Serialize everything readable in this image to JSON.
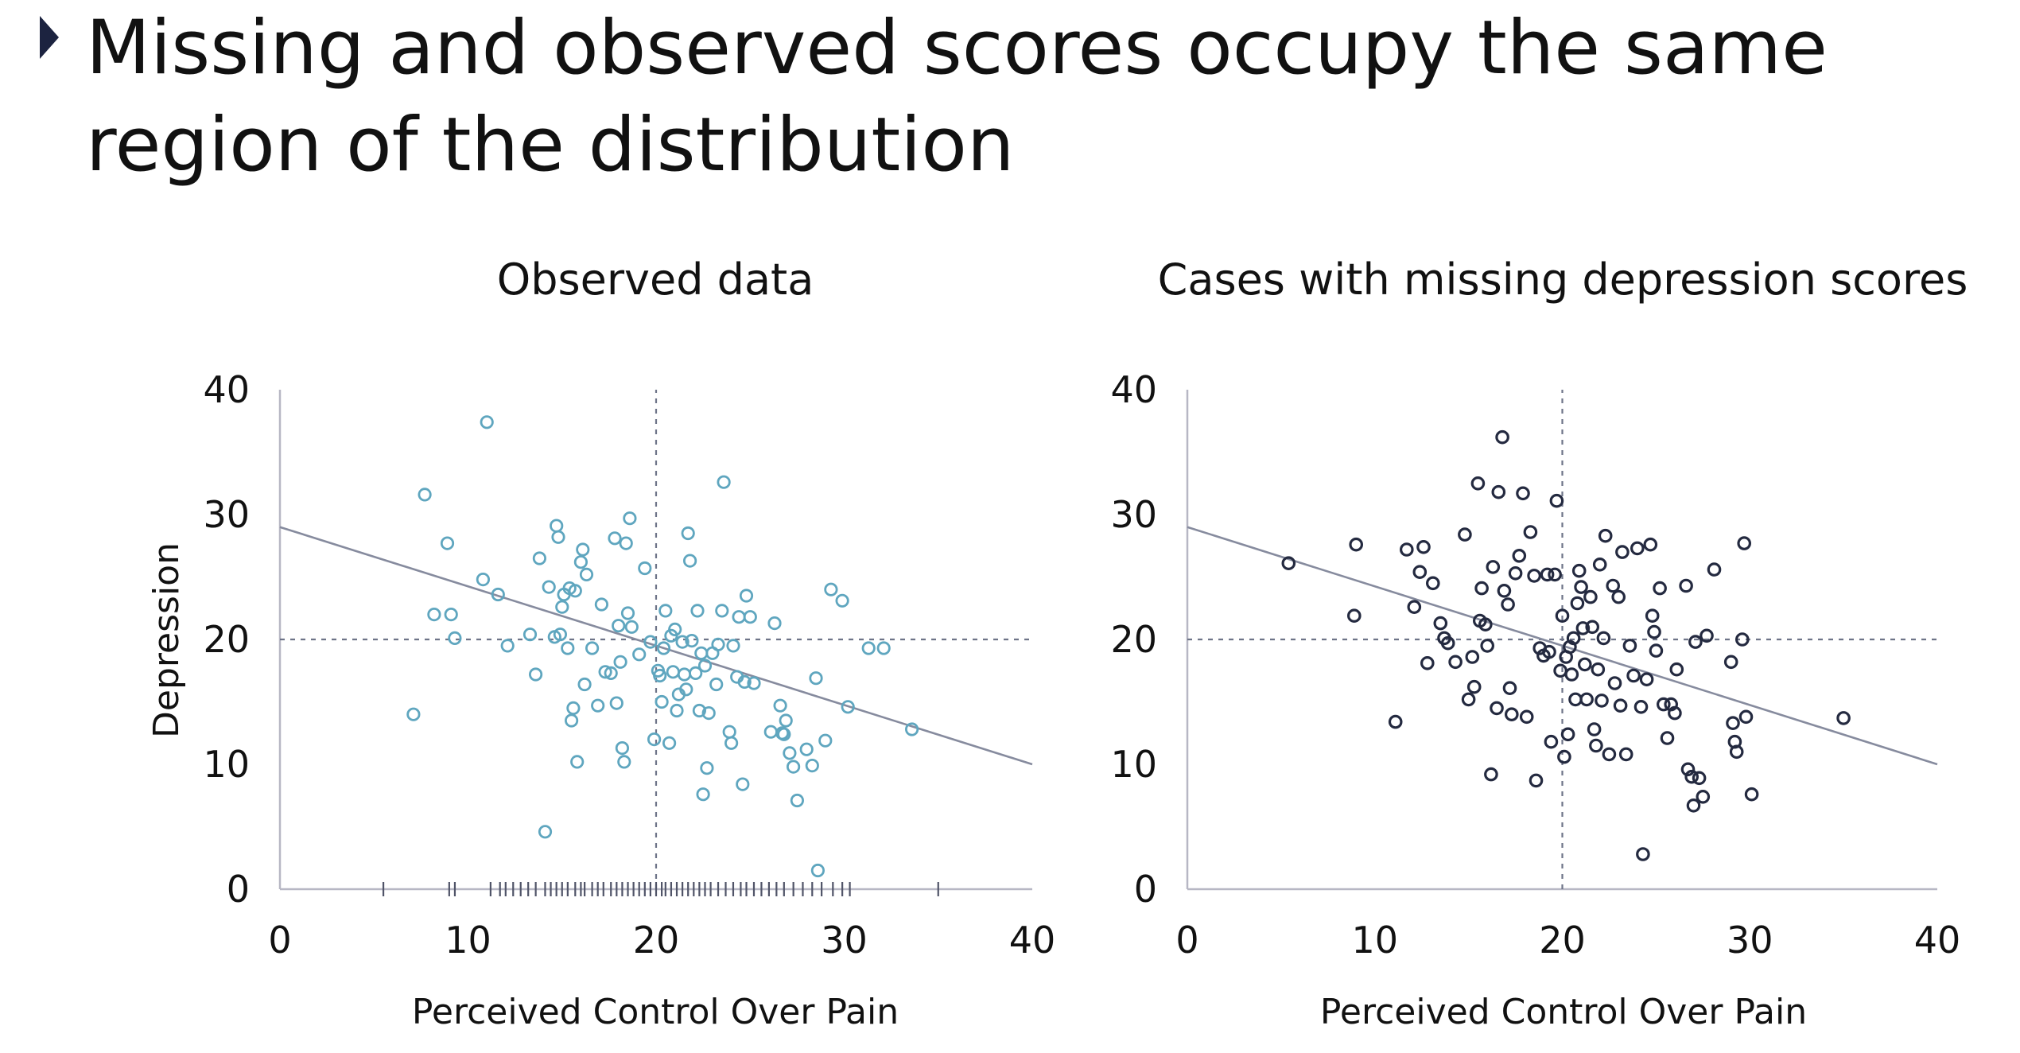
{
  "slide": {
    "title": "Missing and observed scores occupy the same region of the distribution"
  },
  "colors": {
    "observed": "#5fa6bf",
    "missing": "#242a40",
    "fit_line": "#868b9e",
    "axis": "#b7b7c4",
    "bullet": "#1c2340"
  },
  "chart_data": [
    {
      "type": "scatter",
      "title": "Observed data",
      "xlabel": "Perceived Control Over Pain",
      "ylabel": "Depression",
      "xlim": [
        0,
        40
      ],
      "ylim": [
        0,
        40
      ],
      "xticks": [
        "0",
        "10",
        "20",
        "30",
        "40"
      ],
      "yticks": [
        "0",
        "10",
        "20",
        "30",
        "40"
      ],
      "reference_lines": {
        "x": 20,
        "y": 20
      },
      "fit_line": {
        "x": [
          0,
          40
        ],
        "y": [
          29,
          10
        ]
      },
      "marker": "open-circle",
      "rug_x": [
        5.5,
        9,
        9.3,
        11.2,
        11.7,
        12,
        12.4,
        12.8,
        13.2,
        13.6,
        14.1,
        14.4,
        14.7,
        15,
        15.3,
        15.7,
        16,
        16.2,
        16.6,
        16.9,
        17.2,
        17.6,
        17.9,
        18.2,
        18.5,
        18.8,
        19.1,
        19.4,
        19.7,
        20,
        20.3,
        20.5,
        20.8,
        21.1,
        21.4,
        21.7,
        22,
        22.3,
        22.6,
        22.9,
        23.3,
        23.7,
        24.1,
        24.5,
        24.8,
        25.2,
        25.6,
        26,
        26.4,
        26.8,
        27.3,
        27.8,
        28.3,
        28.8,
        29.4,
        29.9,
        30.3,
        35
      ],
      "points": [
        [
          7.1,
          14
        ],
        [
          7.7,
          31.6
        ],
        [
          8.2,
          22
        ],
        [
          8.9,
          27.7
        ],
        [
          9.1,
          22
        ],
        [
          9.3,
          20.1
        ],
        [
          10.8,
          24.8
        ],
        [
          11,
          37.4
        ],
        [
          11.6,
          23.6
        ],
        [
          12.1,
          19.5
        ],
        [
          13.3,
          20.4
        ],
        [
          13.6,
          17.2
        ],
        [
          13.8,
          26.5
        ],
        [
          14.1,
          4.6
        ],
        [
          14.3,
          24.2
        ],
        [
          14.6,
          20.2
        ],
        [
          14.7,
          29.1
        ],
        [
          14.8,
          28.2
        ],
        [
          14.9,
          20.4
        ],
        [
          15,
          22.6
        ],
        [
          15.1,
          23.6
        ],
        [
          15.3,
          19.3
        ],
        [
          15.4,
          24.1
        ],
        [
          15.5,
          13.5
        ],
        [
          15.6,
          14.5
        ],
        [
          15.7,
          23.9
        ],
        [
          15.8,
          10.2
        ],
        [
          16,
          26.2
        ],
        [
          16.1,
          27.2
        ],
        [
          16.2,
          16.4
        ],
        [
          16.3,
          25.2
        ],
        [
          16.6,
          19.3
        ],
        [
          16.9,
          14.7
        ],
        [
          17.1,
          22.8
        ],
        [
          17.3,
          17.4
        ],
        [
          17.6,
          17.3
        ],
        [
          17.8,
          28.1
        ],
        [
          17.9,
          14.9
        ],
        [
          18,
          21.1
        ],
        [
          18.1,
          18.2
        ],
        [
          18.2,
          11.3
        ],
        [
          18.3,
          10.2
        ],
        [
          18.4,
          27.7
        ],
        [
          18.5,
          22.1
        ],
        [
          18.6,
          29.7
        ],
        [
          18.7,
          21
        ],
        [
          19.1,
          18.8
        ],
        [
          19.4,
          25.7
        ],
        [
          19.7,
          19.8
        ],
        [
          19.9,
          12
        ],
        [
          20.1,
          17.5
        ],
        [
          20.2,
          17.1
        ],
        [
          20.3,
          15
        ],
        [
          20.4,
          19.3
        ],
        [
          20.5,
          22.3
        ],
        [
          20.7,
          11.7
        ],
        [
          20.8,
          20.3
        ],
        [
          20.9,
          17.4
        ],
        [
          21,
          20.8
        ],
        [
          21.1,
          14.3
        ],
        [
          21.2,
          15.6
        ],
        [
          21.4,
          19.8
        ],
        [
          21.5,
          17.2
        ],
        [
          21.6,
          16
        ],
        [
          21.7,
          28.5
        ],
        [
          21.8,
          26.3
        ],
        [
          21.9,
          19.9
        ],
        [
          22.1,
          17.3
        ],
        [
          22.2,
          22.3
        ],
        [
          22.3,
          14.3
        ],
        [
          22.4,
          18.9
        ],
        [
          22.5,
          7.6
        ],
        [
          22.6,
          17.9
        ],
        [
          22.7,
          9.7
        ],
        [
          22.8,
          14.1
        ],
        [
          23,
          18.9
        ],
        [
          23.2,
          16.4
        ],
        [
          23.3,
          19.6
        ],
        [
          23.5,
          22.3
        ],
        [
          23.6,
          32.6
        ],
        [
          23.9,
          12.6
        ],
        [
          24,
          11.7
        ],
        [
          24.1,
          19.5
        ],
        [
          24.3,
          17
        ],
        [
          24.4,
          21.8
        ],
        [
          24.6,
          8.4
        ],
        [
          24.7,
          16.6
        ],
        [
          24.8,
          23.5
        ],
        [
          25,
          21.8
        ],
        [
          25.2,
          16.5
        ],
        [
          26.1,
          12.6
        ],
        [
          26.3,
          21.3
        ],
        [
          26.6,
          14.7
        ],
        [
          26.7,
          12.5
        ],
        [
          26.8,
          12.4
        ],
        [
          26.9,
          13.5
        ],
        [
          27.1,
          10.9
        ],
        [
          27.3,
          9.8
        ],
        [
          27.5,
          7.1
        ],
        [
          28,
          11.2
        ],
        [
          28.3,
          9.9
        ],
        [
          28.5,
          16.9
        ],
        [
          28.6,
          1.5
        ],
        [
          29,
          11.9
        ],
        [
          29.3,
          24
        ],
        [
          29.9,
          23.1
        ],
        [
          30.2,
          14.6
        ],
        [
          31.3,
          19.3
        ],
        [
          32.1,
          19.3
        ],
        [
          33.6,
          12.8
        ]
      ]
    },
    {
      "type": "scatter",
      "title": "Cases with missing depression scores",
      "xlabel": "Perceived Control Over Pain",
      "ylabel": "",
      "xlim": [
        0,
        40
      ],
      "ylim": [
        0,
        40
      ],
      "xticks": [
        "0",
        "10",
        "20",
        "30",
        "40"
      ],
      "yticks": [
        "0",
        "10",
        "20",
        "30",
        "40"
      ],
      "reference_lines": {
        "x": 20,
        "y": 20
      },
      "fit_line": {
        "x": [
          0,
          40
        ],
        "y": [
          29,
          10
        ]
      },
      "marker": "open-circle",
      "points": [
        [
          5.4,
          26.1
        ],
        [
          8.9,
          21.9
        ],
        [
          9,
          27.6
        ],
        [
          11.1,
          13.4
        ],
        [
          11.7,
          27.2
        ],
        [
          12.1,
          22.6
        ],
        [
          12.4,
          25.4
        ],
        [
          12.6,
          27.4
        ],
        [
          12.8,
          18.1
        ],
        [
          13.1,
          24.5
        ],
        [
          13.5,
          21.3
        ],
        [
          13.7,
          20.1
        ],
        [
          13.9,
          19.7
        ],
        [
          14.3,
          18.2
        ],
        [
          14.8,
          28.4
        ],
        [
          15,
          15.2
        ],
        [
          15.2,
          18.6
        ],
        [
          15.3,
          16.2
        ],
        [
          15.5,
          32.5
        ],
        [
          15.6,
          21.5
        ],
        [
          15.7,
          24.1
        ],
        [
          15.9,
          21.2
        ],
        [
          16,
          19.5
        ],
        [
          16.2,
          9.2
        ],
        [
          16.3,
          25.8
        ],
        [
          16.5,
          14.5
        ],
        [
          16.6,
          31.8
        ],
        [
          16.8,
          36.2
        ],
        [
          16.9,
          23.9
        ],
        [
          17.1,
          22.8
        ],
        [
          17.2,
          16.1
        ],
        [
          17.3,
          14
        ],
        [
          17.5,
          25.3
        ],
        [
          17.7,
          26.7
        ],
        [
          17.9,
          31.7
        ],
        [
          18.1,
          13.8
        ],
        [
          18.3,
          28.6
        ],
        [
          18.5,
          25.1
        ],
        [
          18.6,
          8.7
        ],
        [
          18.8,
          19.3
        ],
        [
          19,
          18.7
        ],
        [
          19.2,
          25.2
        ],
        [
          19.3,
          19
        ],
        [
          19.4,
          11.8
        ],
        [
          19.6,
          25.2
        ],
        [
          19.7,
          31.1
        ],
        [
          19.9,
          17.5
        ],
        [
          20,
          21.9
        ],
        [
          20.1,
          10.6
        ],
        [
          20.2,
          18.6
        ],
        [
          20.3,
          12.4
        ],
        [
          20.4,
          19.4
        ],
        [
          20.5,
          17.2
        ],
        [
          20.6,
          20.1
        ],
        [
          20.7,
          15.2
        ],
        [
          20.8,
          22.9
        ],
        [
          20.9,
          25.5
        ],
        [
          21,
          24.2
        ],
        [
          21.1,
          20.9
        ],
        [
          21.2,
          18
        ],
        [
          21.3,
          15.2
        ],
        [
          21.5,
          23.4
        ],
        [
          21.6,
          21
        ],
        [
          21.7,
          12.8
        ],
        [
          21.8,
          11.5
        ],
        [
          21.9,
          17.6
        ],
        [
          22,
          26
        ],
        [
          22.1,
          15.1
        ],
        [
          22.2,
          20.1
        ],
        [
          22.3,
          28.3
        ],
        [
          22.5,
          10.8
        ],
        [
          22.7,
          24.3
        ],
        [
          22.8,
          16.5
        ],
        [
          23,
          23.4
        ],
        [
          23.1,
          14.7
        ],
        [
          23.2,
          27
        ],
        [
          23.4,
          10.8
        ],
        [
          23.6,
          19.5
        ],
        [
          23.8,
          17.1
        ],
        [
          24,
          27.3
        ],
        [
          24.2,
          14.6
        ],
        [
          24.3,
          2.8
        ],
        [
          24.5,
          16.8
        ],
        [
          24.7,
          27.6
        ],
        [
          24.8,
          21.9
        ],
        [
          24.9,
          20.6
        ],
        [
          25,
          19.1
        ],
        [
          25.2,
          24.1
        ],
        [
          25.4,
          14.8
        ],
        [
          25.6,
          12.1
        ],
        [
          25.8,
          14.8
        ],
        [
          26,
          14.1
        ],
        [
          26.1,
          17.6
        ],
        [
          26.6,
          24.3
        ],
        [
          26.7,
          9.6
        ],
        [
          26.9,
          9
        ],
        [
          27,
          6.7
        ],
        [
          27.1,
          19.8
        ],
        [
          27.3,
          8.9
        ],
        [
          27.5,
          7.4
        ],
        [
          27.7,
          20.3
        ],
        [
          28.1,
          25.6
        ],
        [
          29,
          18.2
        ],
        [
          29.1,
          13.3
        ],
        [
          29.2,
          11.8
        ],
        [
          29.3,
          11
        ],
        [
          29.6,
          20
        ],
        [
          29.7,
          27.7
        ],
        [
          29.8,
          13.8
        ],
        [
          30.1,
          7.6
        ],
        [
          35,
          13.7
        ]
      ]
    }
  ]
}
